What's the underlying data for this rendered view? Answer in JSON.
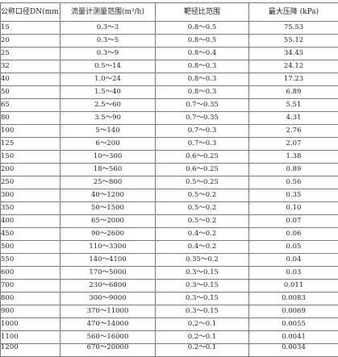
{
  "table": {
    "headers": [
      "公称口径DN(mm)",
      "流量计测量范围(m³/h)",
      "靶径比范围",
      "最大压降 (kPa)"
    ],
    "rows": [
      [
        "15",
        "0.3～3",
        "0.8～0.5",
        "75.53"
      ],
      [
        "20",
        "0.3～5",
        "0.8～0.5",
        "55.12"
      ],
      [
        "25",
        "0.3～9",
        "0.8～0.4",
        "34.45"
      ],
      [
        "32",
        "0.5～14",
        "0.8～0.3",
        "24.12"
      ],
      [
        "40",
        "1.0～24",
        "0.8～0.3",
        "17.23"
      ],
      [
        "50",
        "1.5～40",
        "0.8～0.3",
        "6.89"
      ],
      [
        "65",
        "2.5～60",
        "0.7～0.35",
        "5.51"
      ],
      [
        "80",
        "3.5～90",
        "0.7～0.35",
        "4.31"
      ],
      [
        "100",
        "5～140",
        "0.7～0.3",
        "2.76"
      ],
      [
        "125",
        "6～200",
        "0.7～0.3",
        "2.07"
      ],
      [
        "150",
        "10～300",
        "0.6～0.25",
        "1.38"
      ],
      [
        "200",
        "18～560",
        "0.6～0.25",
        "0.89"
      ],
      [
        "250",
        "25～800",
        "0.5～0.25",
        "0.56"
      ],
      [
        "300",
        "40～1200",
        "0.5～0.2",
        "0.35"
      ],
      [
        "350",
        "50～1500",
        "0.5～0.2",
        "0.10"
      ],
      [
        "400",
        "65～2000",
        "0.5～0.2",
        "0.07"
      ],
      [
        "450",
        "90～2600",
        "0.4～0.2",
        "0.06"
      ],
      [
        "500",
        "110～3300",
        "0.4～0.2",
        "0.05"
      ],
      [
        "550",
        "140～4100",
        "0.35～0.2",
        "0.04"
      ],
      [
        "600",
        "170～5000",
        "0.3～0.15",
        "0.03"
      ],
      [
        "700",
        "230～6800",
        "0.3～0.15",
        "0.011"
      ],
      [
        "800",
        "300～9000",
        "0.3～0.15",
        "0.0083"
      ],
      [
        "900",
        "370～11000",
        "0.3～0.15",
        "0.0069"
      ],
      [
        "1000",
        "470～14000",
        "0.2～0.1",
        "0.0055"
      ],
      [
        "1100",
        "560～16000",
        "0.2～0.1",
        "0.0041"
      ],
      [
        "1200",
        "670～20000",
        "0.2～0.1",
        "0.0034"
      ]
    ]
  }
}
